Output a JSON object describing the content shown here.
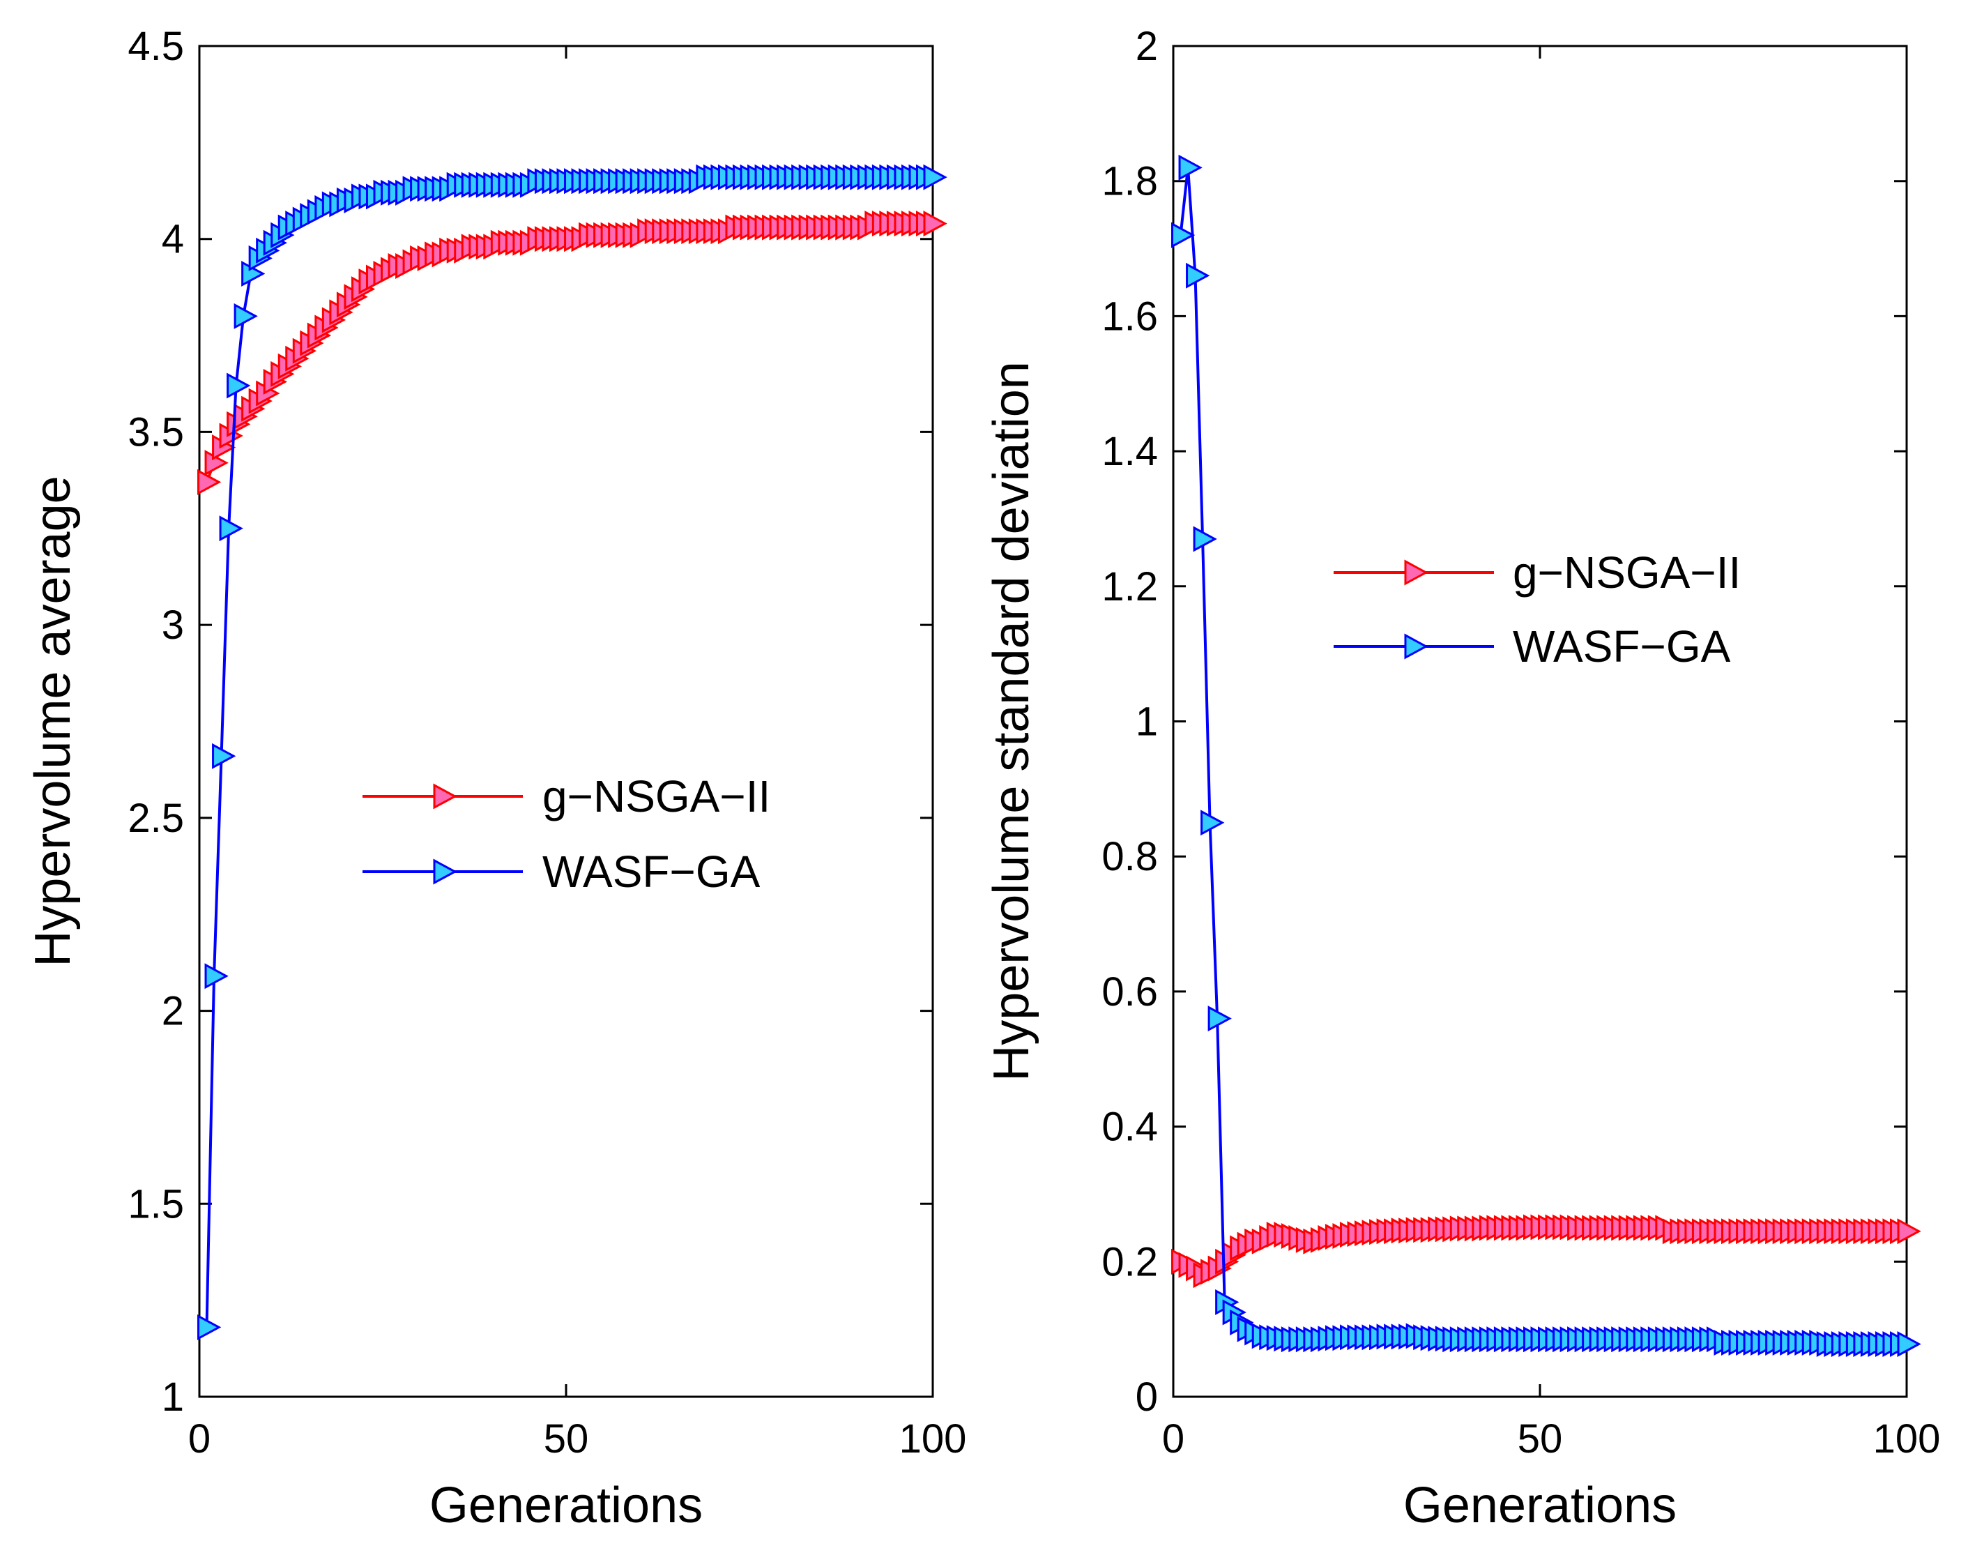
{
  "chart_data": [
    {
      "type": "line",
      "title": "",
      "xlabel": "Generations",
      "ylabel": "Hypervolume average",
      "xlim": [
        0,
        100
      ],
      "ylim": [
        1,
        4.5
      ],
      "xticks": [
        0,
        50,
        100
      ],
      "yticks": [
        1,
        1.5,
        2,
        2.5,
        3,
        3.5,
        4,
        4.5
      ],
      "grid": false,
      "legend_position": "center",
      "series": [
        {
          "name": "g−NSGA−II",
          "line_color": "#ff0000",
          "marker_fill": "#ff69b4",
          "marker": "triangle-right",
          "x": [
            1,
            2,
            3,
            4,
            5,
            6,
            7,
            8,
            9,
            10,
            11,
            12,
            13,
            14,
            15,
            16,
            17,
            18,
            19,
            20,
            21,
            22,
            23,
            24,
            25,
            26,
            27,
            28,
            29,
            30,
            31,
            32,
            33,
            34,
            35,
            36,
            37,
            38,
            39,
            40,
            41,
            42,
            43,
            44,
            45,
            46,
            47,
            48,
            49,
            50,
            51,
            52,
            53,
            54,
            55,
            56,
            57,
            58,
            59,
            60,
            61,
            62,
            63,
            64,
            65,
            66,
            67,
            68,
            69,
            70,
            71,
            72,
            73,
            74,
            75,
            76,
            77,
            78,
            79,
            80,
            81,
            82,
            83,
            84,
            85,
            86,
            87,
            88,
            89,
            90,
            91,
            92,
            93,
            94,
            95,
            96,
            97,
            98,
            99,
            100
          ],
          "values": [
            3.37,
            3.42,
            3.46,
            3.49,
            3.52,
            3.54,
            3.56,
            3.58,
            3.6,
            3.63,
            3.65,
            3.67,
            3.69,
            3.71,
            3.73,
            3.75,
            3.77,
            3.79,
            3.81,
            3.83,
            3.85,
            3.87,
            3.89,
            3.9,
            3.91,
            3.92,
            3.93,
            3.93,
            3.94,
            3.95,
            3.95,
            3.96,
            3.96,
            3.97,
            3.97,
            3.97,
            3.98,
            3.98,
            3.98,
            3.98,
            3.99,
            3.99,
            3.99,
            3.99,
            3.99,
            4.0,
            4.0,
            4.0,
            4.0,
            4.0,
            4.0,
            4.0,
            4.01,
            4.01,
            4.01,
            4.01,
            4.01,
            4.01,
            4.01,
            4.01,
            4.02,
            4.02,
            4.02,
            4.02,
            4.02,
            4.02,
            4.02,
            4.02,
            4.02,
            4.02,
            4.02,
            4.02,
            4.03,
            4.03,
            4.03,
            4.03,
            4.03,
            4.03,
            4.03,
            4.03,
            4.03,
            4.03,
            4.03,
            4.03,
            4.03,
            4.03,
            4.03,
            4.03,
            4.03,
            4.03,
            4.03,
            4.04,
            4.04,
            4.04,
            4.04,
            4.04,
            4.04,
            4.04,
            4.04,
            4.04
          ]
        },
        {
          "name": "WASF−GA",
          "line_color": "#0000ff",
          "marker_fill": "#33ccff",
          "marker": "triangle-right",
          "x": [
            1,
            2,
            3,
            4,
            5,
            6,
            7,
            8,
            9,
            10,
            11,
            12,
            13,
            14,
            15,
            16,
            17,
            18,
            19,
            20,
            21,
            22,
            23,
            24,
            25,
            26,
            27,
            28,
            29,
            30,
            31,
            32,
            33,
            34,
            35,
            36,
            37,
            38,
            39,
            40,
            41,
            42,
            43,
            44,
            45,
            46,
            47,
            48,
            49,
            50,
            51,
            52,
            53,
            54,
            55,
            56,
            57,
            58,
            59,
            60,
            61,
            62,
            63,
            64,
            65,
            66,
            67,
            68,
            69,
            70,
            71,
            72,
            73,
            74,
            75,
            76,
            77,
            78,
            79,
            80,
            81,
            82,
            83,
            84,
            85,
            86,
            87,
            88,
            89,
            90,
            91,
            92,
            93,
            94,
            95,
            96,
            97,
            98,
            99,
            100
          ],
          "values": [
            1.18,
            2.09,
            2.66,
            3.25,
            3.62,
            3.8,
            3.91,
            3.95,
            3.97,
            3.99,
            4.01,
            4.03,
            4.04,
            4.05,
            4.06,
            4.07,
            4.08,
            4.09,
            4.09,
            4.1,
            4.1,
            4.11,
            4.11,
            4.11,
            4.12,
            4.12,
            4.12,
            4.12,
            4.13,
            4.13,
            4.13,
            4.13,
            4.13,
            4.13,
            4.14,
            4.14,
            4.14,
            4.14,
            4.14,
            4.14,
            4.14,
            4.14,
            4.14,
            4.14,
            4.14,
            4.15,
            4.15,
            4.15,
            4.15,
            4.15,
            4.15,
            4.15,
            4.15,
            4.15,
            4.15,
            4.15,
            4.15,
            4.15,
            4.15,
            4.15,
            4.15,
            4.15,
            4.15,
            4.15,
            4.15,
            4.15,
            4.15,
            4.15,
            4.16,
            4.16,
            4.16,
            4.16,
            4.16,
            4.16,
            4.16,
            4.16,
            4.16,
            4.16,
            4.16,
            4.16,
            4.16,
            4.16,
            4.16,
            4.16,
            4.16,
            4.16,
            4.16,
            4.16,
            4.16,
            4.16,
            4.16,
            4.16,
            4.16,
            4.16,
            4.16,
            4.16,
            4.16,
            4.16,
            4.16,
            4.16
          ]
        }
      ]
    },
    {
      "type": "line",
      "title": "",
      "xlabel": "Generations",
      "ylabel": "Hypervolume standard deviation",
      "xlim": [
        0,
        100
      ],
      "ylim": [
        0,
        2
      ],
      "xticks": [
        0,
        50,
        100
      ],
      "yticks": [
        0,
        0.2,
        0.4,
        0.6,
        0.8,
        1,
        1.2,
        1.4,
        1.6,
        1.8,
        2
      ],
      "grid": false,
      "legend_position": "center-right",
      "series": [
        {
          "name": "g−NSGA−II",
          "line_color": "#ff0000",
          "marker_fill": "#ff69b4",
          "marker": "triangle-right",
          "x": [
            1,
            2,
            3,
            4,
            5,
            6,
            7,
            8,
            9,
            10,
            11,
            12,
            13,
            14,
            15,
            16,
            17,
            18,
            19,
            20,
            21,
            22,
            23,
            24,
            25,
            26,
            27,
            28,
            29,
            30,
            31,
            32,
            33,
            34,
            35,
            36,
            37,
            38,
            39,
            40,
            41,
            42,
            43,
            44,
            45,
            46,
            47,
            48,
            49,
            50,
            51,
            52,
            53,
            54,
            55,
            56,
            57,
            58,
            59,
            60,
            61,
            62,
            63,
            64,
            65,
            66,
            67,
            68,
            69,
            70,
            71,
            72,
            73,
            74,
            75,
            76,
            77,
            78,
            79,
            80,
            81,
            82,
            83,
            84,
            85,
            86,
            87,
            88,
            89,
            90,
            91,
            92,
            93,
            94,
            95,
            96,
            97,
            98,
            99,
            100
          ],
          "values": [
            0.2,
            0.195,
            0.19,
            0.18,
            0.185,
            0.19,
            0.2,
            0.21,
            0.22,
            0.225,
            0.23,
            0.23,
            0.235,
            0.24,
            0.24,
            0.238,
            0.235,
            0.232,
            0.23,
            0.232,
            0.235,
            0.237,
            0.238,
            0.24,
            0.241,
            0.242,
            0.243,
            0.244,
            0.245,
            0.245,
            0.246,
            0.246,
            0.247,
            0.247,
            0.247,
            0.248,
            0.248,
            0.248,
            0.249,
            0.249,
            0.249,
            0.249,
            0.25,
            0.25,
            0.25,
            0.25,
            0.25,
            0.25,
            0.251,
            0.251,
            0.251,
            0.251,
            0.251,
            0.251,
            0.25,
            0.25,
            0.25,
            0.25,
            0.25,
            0.25,
            0.25,
            0.25,
            0.25,
            0.25,
            0.25,
            0.25,
            0.25,
            0.245,
            0.245,
            0.245,
            0.245,
            0.245,
            0.245,
            0.245,
            0.245,
            0.245,
            0.245,
            0.245,
            0.245,
            0.245,
            0.245,
            0.245,
            0.245,
            0.245,
            0.245,
            0.245,
            0.245,
            0.245,
            0.245,
            0.245,
            0.245,
            0.245,
            0.245,
            0.245,
            0.245,
            0.245,
            0.245,
            0.245,
            0.245,
            0.245
          ]
        },
        {
          "name": "WASF−GA",
          "line_color": "#0000ff",
          "marker_fill": "#33ccff",
          "marker": "triangle-right",
          "x": [
            1,
            2,
            3,
            4,
            5,
            6,
            7,
            8,
            9,
            10,
            11,
            12,
            13,
            14,
            15,
            16,
            17,
            18,
            19,
            20,
            21,
            22,
            23,
            24,
            25,
            26,
            27,
            28,
            29,
            30,
            31,
            32,
            33,
            34,
            35,
            36,
            37,
            38,
            39,
            40,
            41,
            42,
            43,
            44,
            45,
            46,
            47,
            48,
            49,
            50,
            51,
            52,
            53,
            54,
            55,
            56,
            57,
            58,
            59,
            60,
            61,
            62,
            63,
            64,
            65,
            66,
            67,
            68,
            69,
            70,
            71,
            72,
            73,
            74,
            75,
            76,
            77,
            78,
            79,
            80,
            81,
            82,
            83,
            84,
            85,
            86,
            87,
            88,
            89,
            90,
            91,
            92,
            93,
            94,
            95,
            96,
            97,
            98,
            99,
            100
          ],
          "values": [
            1.72,
            1.82,
            1.66,
            1.27,
            0.85,
            0.56,
            0.14,
            0.125,
            0.11,
            0.1,
            0.095,
            0.09,
            0.088,
            0.087,
            0.086,
            0.085,
            0.085,
            0.085,
            0.085,
            0.085,
            0.086,
            0.087,
            0.087,
            0.088,
            0.088,
            0.088,
            0.088,
            0.088,
            0.089,
            0.089,
            0.089,
            0.089,
            0.09,
            0.088,
            0.087,
            0.086,
            0.086,
            0.085,
            0.085,
            0.085,
            0.085,
            0.085,
            0.085,
            0.085,
            0.085,
            0.085,
            0.085,
            0.085,
            0.085,
            0.085,
            0.085,
            0.085,
            0.085,
            0.085,
            0.085,
            0.085,
            0.085,
            0.085,
            0.085,
            0.085,
            0.085,
            0.085,
            0.085,
            0.085,
            0.085,
            0.085,
            0.085,
            0.085,
            0.085,
            0.085,
            0.085,
            0.085,
            0.085,
            0.085,
            0.08,
            0.08,
            0.08,
            0.08,
            0.08,
            0.08,
            0.08,
            0.08,
            0.08,
            0.08,
            0.08,
            0.08,
            0.08,
            0.08,
            0.078,
            0.078,
            0.078,
            0.078,
            0.078,
            0.078,
            0.078,
            0.078,
            0.078,
            0.078,
            0.078,
            0.078
          ]
        }
      ]
    }
  ]
}
